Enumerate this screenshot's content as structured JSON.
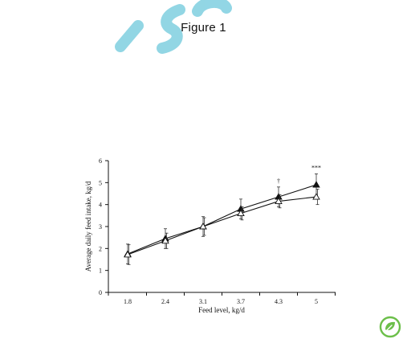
{
  "page": {
    "figure_title": "Figure 1",
    "watermark_text": "ISO",
    "watermark_color": "#7fcfe0",
    "logo_color": "#6cbf4a",
    "logo_icon": "leaf-badge-icon"
  },
  "chart_data": {
    "type": "line",
    "title": "",
    "xlabel": "Feed level, kg/d",
    "ylabel": "Average daily feed intake, kg/d",
    "categories": [
      "1.8",
      "2.4",
      "3.1",
      "3.7",
      "4.3",
      "5"
    ],
    "ylim": [
      0,
      6
    ],
    "yticks": [
      "0",
      "1",
      "2",
      "3",
      "4",
      "5",
      "6"
    ],
    "grid": false,
    "series": [
      {
        "marker": "filled-triangle",
        "values": [
          1.75,
          2.45,
          3.0,
          3.8,
          4.35,
          4.9
        ],
        "errors": [
          0.45,
          0.45,
          0.45,
          0.45,
          0.45,
          0.5
        ]
      },
      {
        "marker": "open-triangle",
        "values": [
          1.72,
          2.35,
          3.0,
          3.6,
          4.15,
          4.35
        ],
        "errors": [
          0.45,
          0.35,
          0.4,
          0.3,
          0.3,
          0.35
        ]
      }
    ],
    "annotations": [
      {
        "category": "4.3",
        "text": "†"
      },
      {
        "category": "5",
        "text": "***"
      }
    ]
  }
}
